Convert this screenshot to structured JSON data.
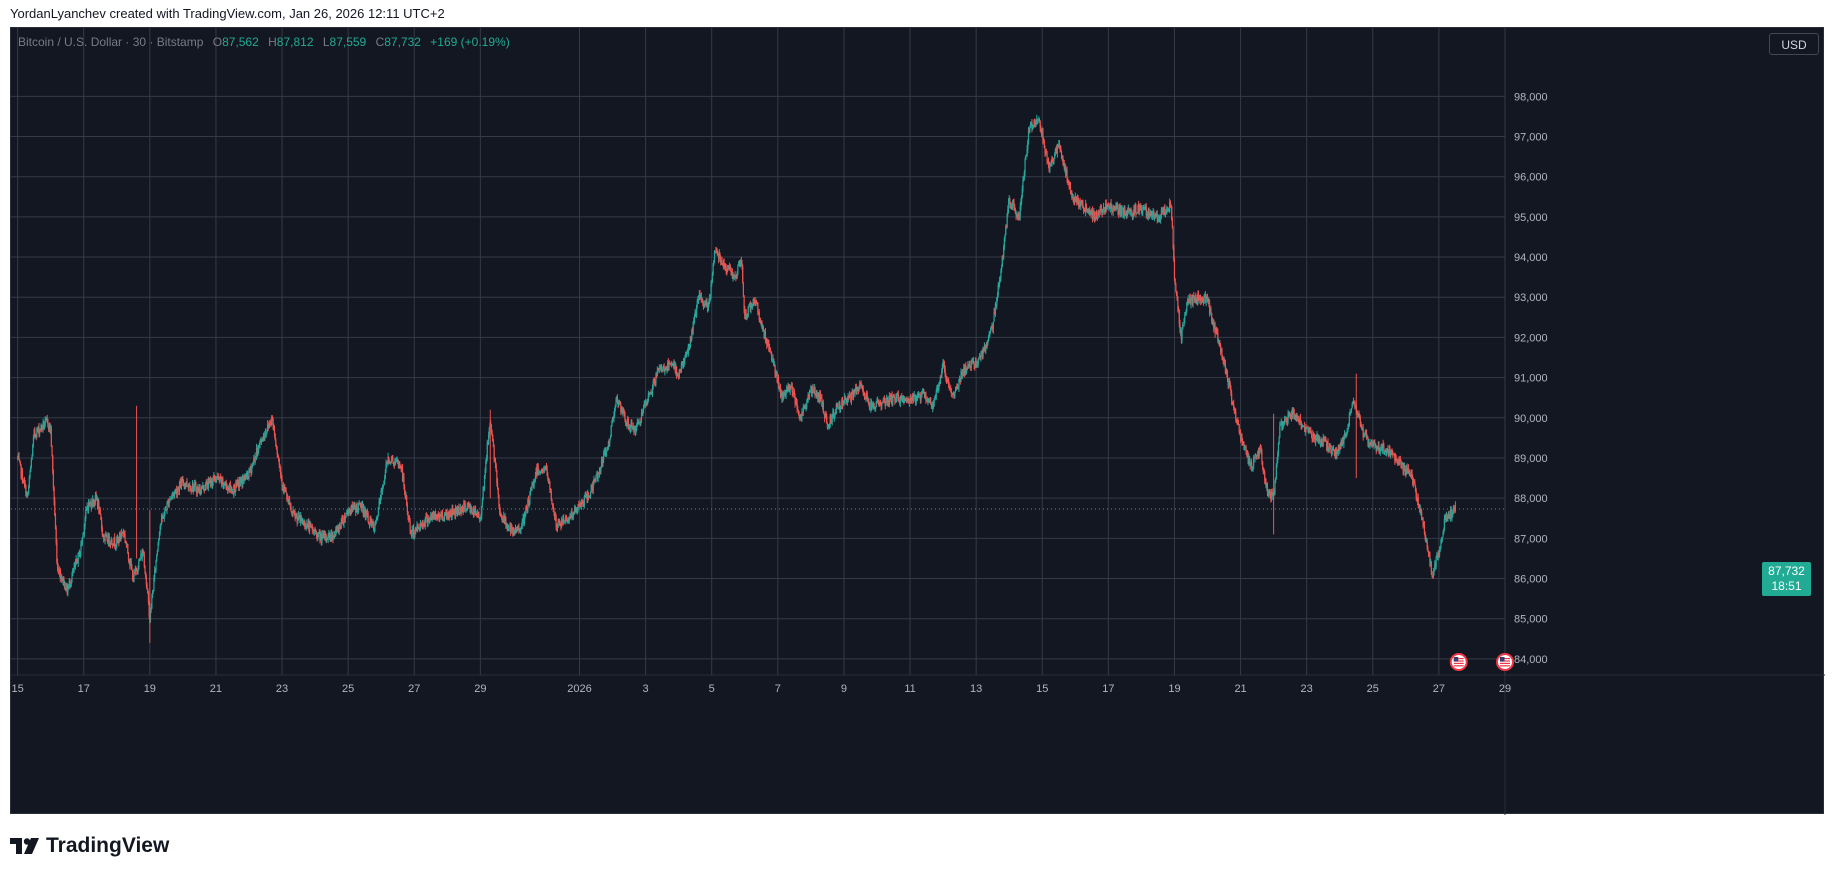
{
  "header": {
    "caption": "YordanLyanchev created with TradingView.com, Jan 26, 2026 12:11 UTC+2"
  },
  "legend": {
    "symbol": "Bitcoin / U.S. Dollar · 30 · Bitstamp",
    "open_label": "O",
    "open": "87,562",
    "high_label": "H",
    "high": "87,812",
    "low_label": "L",
    "low": "87,559",
    "close_label": "C",
    "close": "87,732",
    "change": "+169 (+0.19%)"
  },
  "toolbar": {
    "currency_label": "USD"
  },
  "last_price": {
    "price": "87,732",
    "countdown": "18:51"
  },
  "brand": {
    "name": "TradingView"
  },
  "colors": {
    "background": "#131722",
    "grid": "#363a45",
    "up": "#26a69a",
    "down": "#ef5350",
    "axis_text": "#b2b5be",
    "price_tag": "#22ab94"
  },
  "chart_data": {
    "type": "candlestick",
    "interval": "30",
    "source": "Bitstamp",
    "ylim": [
      83600,
      99700
    ],
    "y_ticks": [
      84000,
      85000,
      86000,
      87000,
      88000,
      89000,
      90000,
      91000,
      92000,
      93000,
      94000,
      95000,
      96000,
      97000,
      98000
    ],
    "y_tick_labels": [
      "84,000",
      "85,000",
      "86,000",
      "87,000",
      "88,000",
      "89,000",
      "90,000",
      "91,000",
      "92,000",
      "93,000",
      "94,000",
      "95,000",
      "96,000",
      "97,000",
      "98,000"
    ],
    "x_tick_labels": [
      "15",
      "17",
      "19",
      "21",
      "23",
      "25",
      "27",
      "29",
      "2026",
      "3",
      "5",
      "7",
      "9",
      "11",
      "13",
      "15",
      "17",
      "19",
      "21",
      "23",
      "25",
      "27",
      "29"
    ],
    "x_tick_days": [
      0,
      2,
      4,
      6,
      8,
      10,
      12,
      14,
      17,
      19,
      21,
      23,
      25,
      27,
      29,
      31,
      33,
      35,
      37,
      39,
      41,
      43,
      45
    ],
    "x_range_days": [
      -0.2,
      45.0
    ],
    "last_price": 87732,
    "price_path": [
      {
        "day": 0.0,
        "price": 89000
      },
      {
        "day": 0.3,
        "price": 88000
      },
      {
        "day": 0.5,
        "price": 89600
      },
      {
        "day": 0.9,
        "price": 89900
      },
      {
        "day": 1.0,
        "price": 89700
      },
      {
        "day": 1.2,
        "price": 86300
      },
      {
        "day": 1.5,
        "price": 85700
      },
      {
        "day": 1.9,
        "price": 86700
      },
      {
        "day": 2.1,
        "price": 87800
      },
      {
        "day": 2.4,
        "price": 88000
      },
      {
        "day": 2.6,
        "price": 87000
      },
      {
        "day": 3.0,
        "price": 86900
      },
      {
        "day": 3.2,
        "price": 87200
      },
      {
        "day": 3.5,
        "price": 86000
      },
      {
        "day": 3.8,
        "price": 86700
      },
      {
        "day": 4.0,
        "price": 85000
      },
      {
        "day": 4.3,
        "price": 87300
      },
      {
        "day": 4.6,
        "price": 88000
      },
      {
        "day": 5.0,
        "price": 88400
      },
      {
        "day": 5.5,
        "price": 88200
      },
      {
        "day": 6.0,
        "price": 88500
      },
      {
        "day": 6.5,
        "price": 88200
      },
      {
        "day": 7.0,
        "price": 88600
      },
      {
        "day": 7.3,
        "price": 89300
      },
      {
        "day": 7.7,
        "price": 90000
      },
      {
        "day": 8.0,
        "price": 88400
      },
      {
        "day": 8.3,
        "price": 87600
      },
      {
        "day": 8.8,
        "price": 87300
      },
      {
        "day": 9.2,
        "price": 87000
      },
      {
        "day": 9.6,
        "price": 87100
      },
      {
        "day": 10.0,
        "price": 87700
      },
      {
        "day": 10.4,
        "price": 87800
      },
      {
        "day": 10.8,
        "price": 87200
      },
      {
        "day": 11.2,
        "price": 89000
      },
      {
        "day": 11.6,
        "price": 88800
      },
      {
        "day": 11.9,
        "price": 87100
      },
      {
        "day": 12.4,
        "price": 87500
      },
      {
        "day": 13.0,
        "price": 87600
      },
      {
        "day": 13.6,
        "price": 87800
      },
      {
        "day": 14.0,
        "price": 87500
      },
      {
        "day": 14.3,
        "price": 90000
      },
      {
        "day": 14.6,
        "price": 87600
      },
      {
        "day": 15.0,
        "price": 87100
      },
      {
        "day": 15.3,
        "price": 87400
      },
      {
        "day": 15.7,
        "price": 88700
      },
      {
        "day": 16.0,
        "price": 88700
      },
      {
        "day": 16.3,
        "price": 87300
      },
      {
        "day": 16.8,
        "price": 87600
      },
      {
        "day": 17.3,
        "price": 88100
      },
      {
        "day": 17.6,
        "price": 88700
      },
      {
        "day": 17.9,
        "price": 89400
      },
      {
        "day": 18.1,
        "price": 90500
      },
      {
        "day": 18.4,
        "price": 89900
      },
      {
        "day": 18.7,
        "price": 89700
      },
      {
        "day": 19.0,
        "price": 90300
      },
      {
        "day": 19.4,
        "price": 91200
      },
      {
        "day": 19.8,
        "price": 91300
      },
      {
        "day": 20.0,
        "price": 91100
      },
      {
        "day": 20.3,
        "price": 91700
      },
      {
        "day": 20.6,
        "price": 93000
      },
      {
        "day": 20.9,
        "price": 92700
      },
      {
        "day": 21.1,
        "price": 94200
      },
      {
        "day": 21.4,
        "price": 93800
      },
      {
        "day": 21.7,
        "price": 93500
      },
      {
        "day": 21.9,
        "price": 93900
      },
      {
        "day": 22.0,
        "price": 92500
      },
      {
        "day": 22.3,
        "price": 93000
      },
      {
        "day": 22.5,
        "price": 92300
      },
      {
        "day": 22.8,
        "price": 91600
      },
      {
        "day": 23.1,
        "price": 90500
      },
      {
        "day": 23.4,
        "price": 90800
      },
      {
        "day": 23.7,
        "price": 90000
      },
      {
        "day": 24.0,
        "price": 90700
      },
      {
        "day": 24.3,
        "price": 90500
      },
      {
        "day": 24.5,
        "price": 89800
      },
      {
        "day": 24.8,
        "price": 90300
      },
      {
        "day": 25.2,
        "price": 90500
      },
      {
        "day": 25.5,
        "price": 90800
      },
      {
        "day": 25.8,
        "price": 90300
      },
      {
        "day": 26.2,
        "price": 90400
      },
      {
        "day": 26.6,
        "price": 90500
      },
      {
        "day": 27.0,
        "price": 90400
      },
      {
        "day": 27.4,
        "price": 90600
      },
      {
        "day": 27.7,
        "price": 90300
      },
      {
        "day": 28.0,
        "price": 91300
      },
      {
        "day": 28.3,
        "price": 90500
      },
      {
        "day": 28.6,
        "price": 91200
      },
      {
        "day": 28.9,
        "price": 91300
      },
      {
        "day": 29.2,
        "price": 91600
      },
      {
        "day": 29.5,
        "price": 92300
      },
      {
        "day": 29.8,
        "price": 94000
      },
      {
        "day": 30.0,
        "price": 95400
      },
      {
        "day": 30.3,
        "price": 95000
      },
      {
        "day": 30.6,
        "price": 97200
      },
      {
        "day": 30.9,
        "price": 97500
      },
      {
        "day": 31.2,
        "price": 96200
      },
      {
        "day": 31.5,
        "price": 96800
      },
      {
        "day": 31.9,
        "price": 95500
      },
      {
        "day": 32.2,
        "price": 95300
      },
      {
        "day": 32.6,
        "price": 95000
      },
      {
        "day": 33.0,
        "price": 95300
      },
      {
        "day": 33.5,
        "price": 95100
      },
      {
        "day": 34.0,
        "price": 95200
      },
      {
        "day": 34.5,
        "price": 95000
      },
      {
        "day": 34.9,
        "price": 95300
      },
      {
        "day": 35.0,
        "price": 93500
      },
      {
        "day": 35.2,
        "price": 92000
      },
      {
        "day": 35.4,
        "price": 92900
      },
      {
        "day": 35.8,
        "price": 93000
      },
      {
        "day": 36.0,
        "price": 92900
      },
      {
        "day": 36.3,
        "price": 92000
      },
      {
        "day": 36.6,
        "price": 91000
      },
      {
        "day": 37.0,
        "price": 89500
      },
      {
        "day": 37.3,
        "price": 88800
      },
      {
        "day": 37.6,
        "price": 89200
      },
      {
        "day": 37.8,
        "price": 88200
      },
      {
        "day": 38.0,
        "price": 88000
      },
      {
        "day": 38.2,
        "price": 89800
      },
      {
        "day": 38.5,
        "price": 90100
      },
      {
        "day": 38.8,
        "price": 89900
      },
      {
        "day": 39.2,
        "price": 89500
      },
      {
        "day": 39.5,
        "price": 89400
      },
      {
        "day": 39.9,
        "price": 89100
      },
      {
        "day": 40.2,
        "price": 89600
      },
      {
        "day": 40.4,
        "price": 90500
      },
      {
        "day": 40.7,
        "price": 89600
      },
      {
        "day": 41.0,
        "price": 89300
      },
      {
        "day": 41.4,
        "price": 89200
      },
      {
        "day": 41.8,
        "price": 88900
      },
      {
        "day": 42.2,
        "price": 88500
      },
      {
        "day": 42.5,
        "price": 87400
      },
      {
        "day": 42.8,
        "price": 86100
      },
      {
        "day": 43.0,
        "price": 86700
      },
      {
        "day": 43.2,
        "price": 87500
      },
      {
        "day": 43.5,
        "price": 87732
      }
    ],
    "spikes": [
      {
        "day": 3.6,
        "high": 90300,
        "low": 86500
      },
      {
        "day": 4.0,
        "high": 87700,
        "low": 84400
      },
      {
        "day": 14.3,
        "high": 90200,
        "low": 88000
      },
      {
        "day": 38.0,
        "high": 90100,
        "low": 87100
      },
      {
        "day": 40.5,
        "high": 91100,
        "low": 88500
      }
    ],
    "events": [
      {
        "day": 43.6,
        "icon": "us-flag-icon"
      },
      {
        "day": 45.0,
        "icon": "us-flag-icon"
      }
    ]
  }
}
